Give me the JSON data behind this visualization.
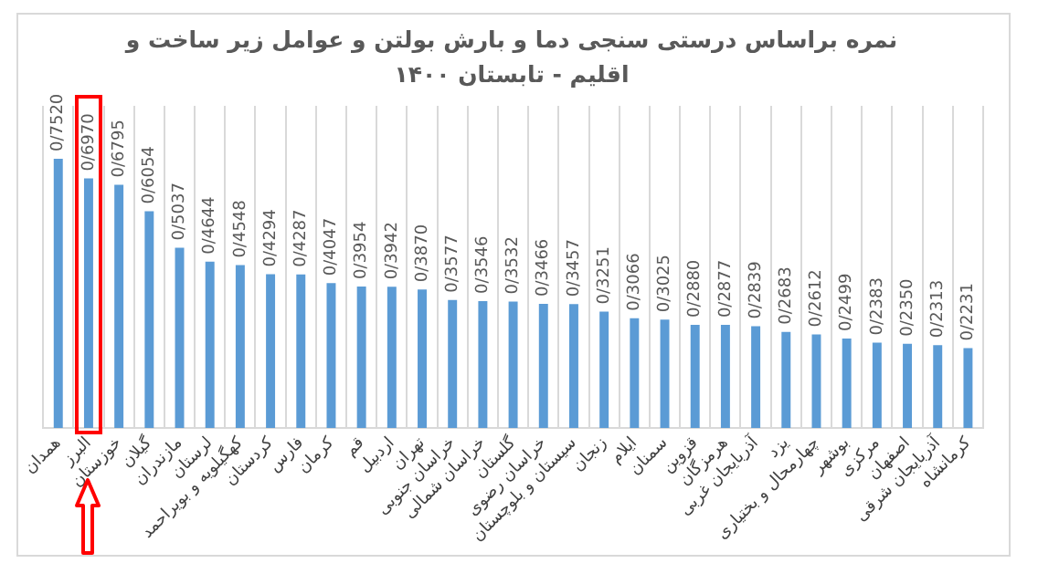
{
  "chart_data": {
    "type": "bar",
    "title": "نمره براساس درستی سنجی دما و بارش بولتن و عوامل زیر ساخت و اقلیم - تابستان ۱۴۰۰",
    "categories": [
      "همدان",
      "البرز",
      "خوزستان",
      "گیلان",
      "مازندران",
      "لرستان",
      "کهگیلویه و بویراحمد",
      "کردستان",
      "فارس",
      "کرمان",
      "قم",
      "اردبیل",
      "تهران",
      "خراسان جنوبی",
      "خراسان شمالی",
      "گلستان",
      "خراسان رضوی",
      "سیستان و بلوچستان",
      "زنجان",
      "ایلام",
      "سمنان",
      "قزوین",
      "هرمزگان",
      "آذربایجان غربی",
      "یزد",
      "چهارمحال و بختیاری",
      "بوشهر",
      "مرکزی",
      "اصفهان",
      "آذربایجان شرقی",
      "کرمانشاه"
    ],
    "values": [
      0.752,
      0.697,
      0.6795,
      0.6054,
      0.5037,
      0.4644,
      0.4548,
      0.4294,
      0.4287,
      0.4047,
      0.3954,
      0.3942,
      0.387,
      0.3577,
      0.3546,
      0.3532,
      0.3466,
      0.3457,
      0.3251,
      0.3066,
      0.3025,
      0.288,
      0.2877,
      0.2839,
      0.2683,
      0.2612,
      0.2499,
      0.2383,
      0.235,
      0.2313,
      0.2231
    ],
    "value_labels": [
      "0/7520",
      "0/6970",
      "0/6795",
      "0/6054",
      "0/5037",
      "0/4644",
      "0/4548",
      "0/4294",
      "0/4287",
      "0/4047",
      "0/3954",
      "0/3942",
      "0/3870",
      "0/3577",
      "0/3546",
      "0/3532",
      "0/3466",
      "0/3457",
      "0/3251",
      "0/3066",
      "0/3025",
      "0/2880",
      "0/2877",
      "0/2839",
      "0/2683",
      "0/2612",
      "0/2499",
      "0/2383",
      "0/2350",
      "0/2313",
      "0/2231"
    ],
    "color": "#5b9bd5",
    "grid": "x",
    "legend": false
  }
}
